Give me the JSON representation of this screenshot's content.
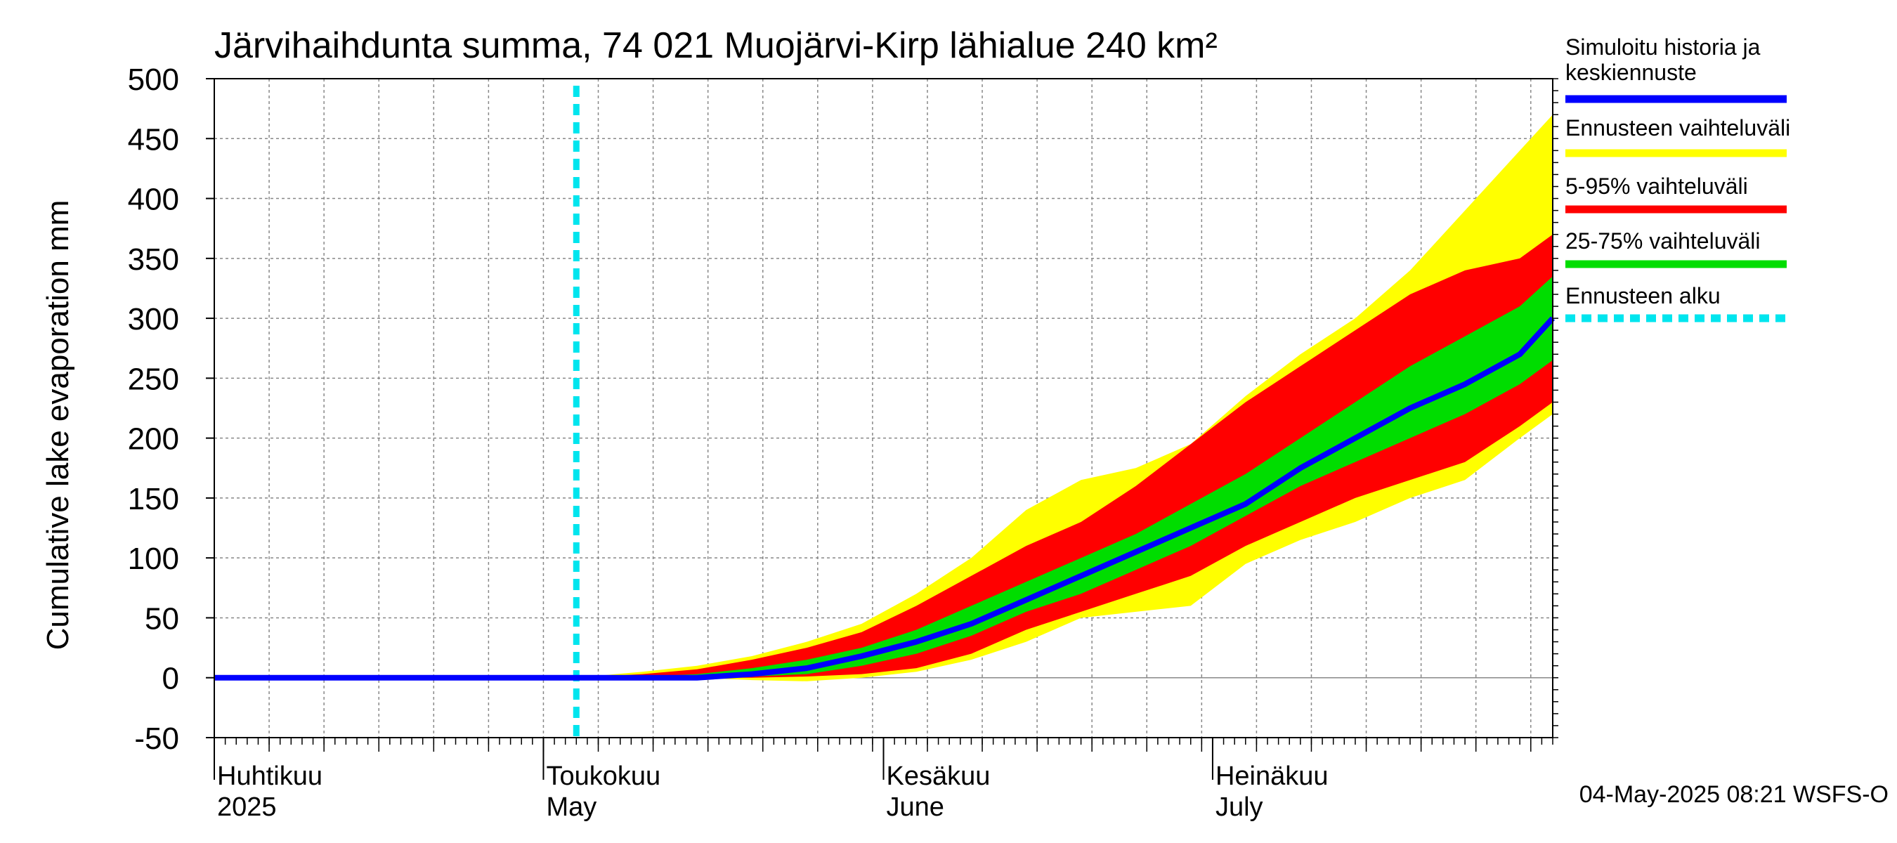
{
  "chart_data": {
    "type": "area",
    "title": "Järvihaihdunta summa, 74 021 Muojärvi-Kirp lähialue 240 km²",
    "ylabel": "Cumulative lake evaporation   mm",
    "xlabel": "",
    "x_range": [
      "2025-04-01",
      "2025-08-01"
    ],
    "ylim": [
      -50,
      500
    ],
    "y_ticks": [
      -50,
      0,
      50,
      100,
      150,
      200,
      250,
      300,
      350,
      400,
      450,
      500
    ],
    "x_major_labels": [
      {
        "date": "2025-04-01",
        "line1": "Huhtikuu",
        "line2": "2025"
      },
      {
        "date": "2025-05-01",
        "line1": "Toukokuu",
        "line2": "May"
      },
      {
        "date": "2025-06-01",
        "line1": "Kesäkuu",
        "line2": "June"
      },
      {
        "date": "2025-07-01",
        "line1": "Heinäkuu",
        "line2": "July"
      }
    ],
    "grid": true,
    "legend_position": "right",
    "forecast_start": "2025-05-04",
    "timestamp": "04-May-2025 08:21 WSFS-O",
    "dates": [
      "2025-04-01",
      "2025-05-04",
      "2025-05-10",
      "2025-05-15",
      "2025-05-20",
      "2025-05-25",
      "2025-05-30",
      "2025-06-04",
      "2025-06-09",
      "2025-06-14",
      "2025-06-19",
      "2025-06-24",
      "2025-06-29",
      "2025-07-04",
      "2025-07-09",
      "2025-07-14",
      "2025-07-19",
      "2025-07-24",
      "2025-07-29",
      "2025-08-01"
    ],
    "series": [
      {
        "name": "Ennusteen vaihteluväli",
        "color": "#ffff00",
        "lower": [
          0,
          0,
          0,
          0,
          -2,
          -3,
          0,
          5,
          15,
          30,
          50,
          55,
          60,
          95,
          115,
          130,
          150,
          165,
          200,
          220
        ],
        "upper": [
          0,
          0,
          5,
          10,
          18,
          30,
          45,
          70,
          100,
          140,
          165,
          175,
          195,
          235,
          270,
          300,
          340,
          390,
          440,
          470
        ]
      },
      {
        "name": "5-95% vaihteluväli",
        "color": "#ff0000",
        "lower": [
          0,
          0,
          0,
          0,
          0,
          1,
          3,
          8,
          20,
          40,
          55,
          70,
          85,
          110,
          130,
          150,
          165,
          180,
          210,
          230
        ],
        "upper": [
          0,
          0,
          3,
          7,
          15,
          25,
          38,
          60,
          85,
          110,
          130,
          160,
          195,
          230,
          260,
          290,
          320,
          340,
          350,
          370
        ]
      },
      {
        "name": "25-75% vaihteluväli",
        "color": "#00dd00",
        "lower": [
          0,
          0,
          0,
          0,
          1,
          3,
          10,
          20,
          35,
          55,
          70,
          90,
          110,
          135,
          160,
          180,
          200,
          220,
          245,
          265
        ]
      },
      {
        "name": "Simuloitu historia ja keskiennuste",
        "color": "#0000ff",
        "values": [
          0,
          0,
          0,
          0,
          3,
          8,
          18,
          30,
          45,
          65,
          85,
          105,
          125,
          145,
          175,
          200,
          225,
          245,
          270,
          300
        ]
      }
    ],
    "band_25_75_upper": [
      0,
      0,
      1,
      3,
      8,
      15,
      25,
      40,
      60,
      80,
      100,
      120,
      145,
      170,
      200,
      230,
      260,
      285,
      310,
      335
    ]
  },
  "legend": {
    "items": [
      {
        "line1": "Simuloitu historia ja",
        "line2": "keskiennuste",
        "color": "#0000ff",
        "style": "solid"
      },
      {
        "line1": "Ennusteen vaihteluväli",
        "line2": "",
        "color": "#ffff00",
        "style": "solid"
      },
      {
        "line1": "5-95% vaihteluväli",
        "line2": "",
        "color": "#ff0000",
        "style": "solid"
      },
      {
        "line1": "25-75% vaihteluväli",
        "line2": "",
        "color": "#00dd00",
        "style": "solid"
      },
      {
        "line1": "Ennusteen alku",
        "line2": "",
        "color": "#00e5ee",
        "style": "dashed"
      }
    ]
  }
}
